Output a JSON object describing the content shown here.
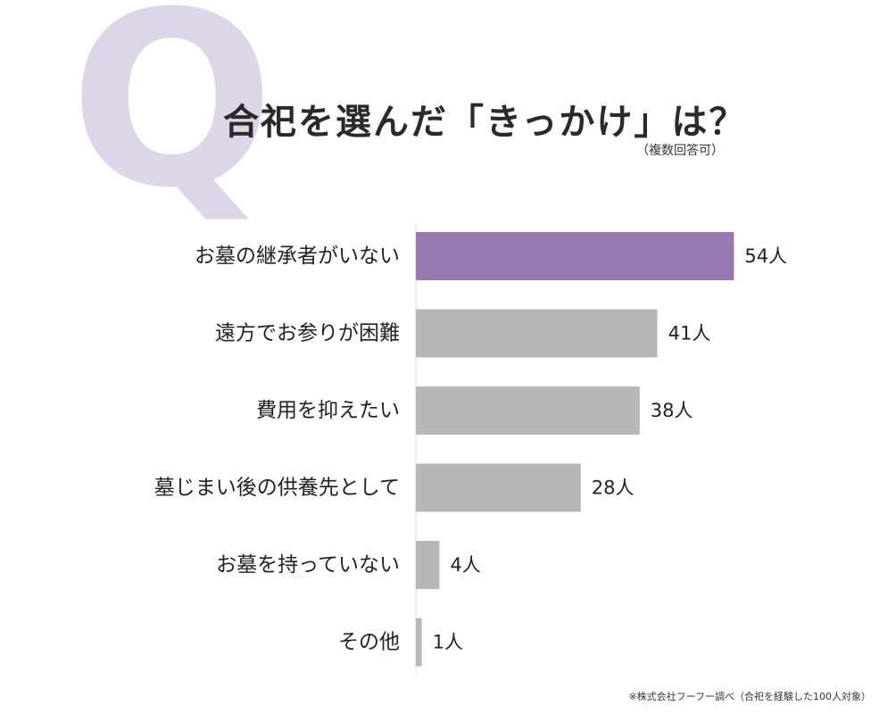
{
  "header": {
    "q_mark": "Q",
    "title": "合祀を選んだ「きっかけ」は？",
    "subtitle": "（複数回答可）"
  },
  "footnote": "※株式会社フーフー調べ（合祀を経験した100人対象）",
  "colors": {
    "highlight": "#9679b0",
    "bar": "#b7b7b7",
    "axis": "#dddddd"
  },
  "chart_data": {
    "type": "bar",
    "orientation": "horizontal",
    "categories": [
      "お墓の継承者がいない",
      "遠方でお参りが困難",
      "費用を抑えたい",
      "墓じまい後の供養先として",
      "お墓を持っていない",
      "その他"
    ],
    "values": [
      54,
      41,
      38,
      28,
      4,
      1
    ],
    "value_labels": [
      "54人",
      "41人",
      "38人",
      "28人",
      "4人",
      "1人"
    ],
    "unit": "人",
    "highlight_index": 0
  }
}
